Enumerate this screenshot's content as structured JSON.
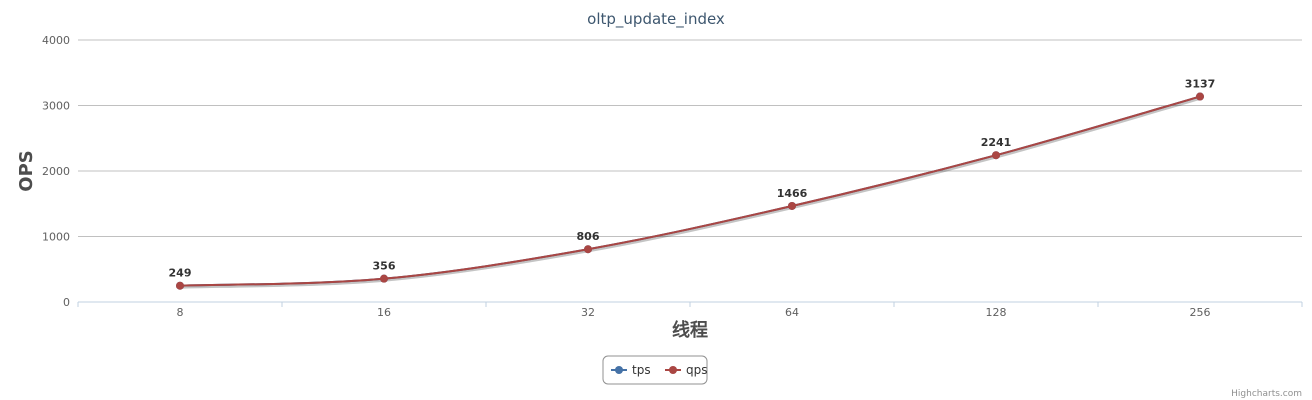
{
  "chart_data": {
    "type": "line",
    "title": "oltp_update_index",
    "xlabel": "线程",
    "ylabel": "OPS",
    "categories": [
      "8",
      "16",
      "32",
      "64",
      "128",
      "256"
    ],
    "ylim": [
      0,
      4000
    ],
    "yticks": [
      "0",
      "1000",
      "2000",
      "3000",
      "4000"
    ],
    "grid": true,
    "legend_position": "bottom-center",
    "series": [
      {
        "name": "tps",
        "values": [
          249,
          356,
          806,
          1466,
          2241,
          3137
        ],
        "color": "#4572a7",
        "show_labels": false
      },
      {
        "name": "qps",
        "values": [
          249,
          356,
          806,
          1466,
          2241,
          3137
        ],
        "color": "#aa4643",
        "show_labels": true
      }
    ]
  },
  "credit": "Highcharts.com"
}
